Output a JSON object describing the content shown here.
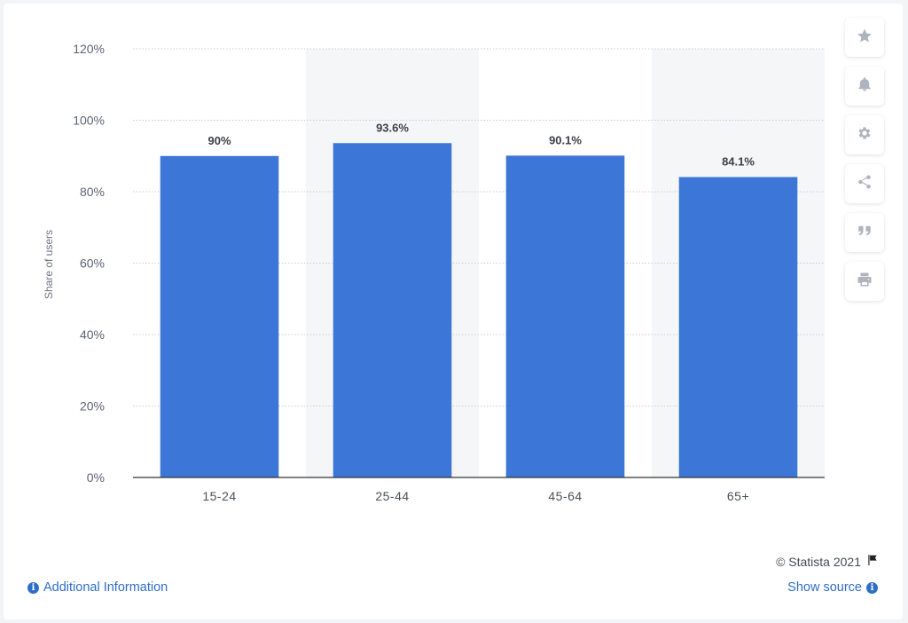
{
  "chart_data": {
    "type": "bar",
    "categories": [
      "15-24",
      "25-44",
      "45-64",
      "65+"
    ],
    "values": [
      90,
      93.6,
      90.1,
      84.1
    ],
    "data_labels": [
      "90%",
      "93.6%",
      "90.1%",
      "84.1%"
    ],
    "ylabel": "Share of users",
    "xlabel": "",
    "ylim": [
      0,
      120
    ],
    "yticks": [
      0,
      20,
      40,
      60,
      80,
      100,
      120
    ],
    "ytick_labels": [
      "0%",
      "20%",
      "40%",
      "60%",
      "80%",
      "100%",
      "120%"
    ],
    "grid": true,
    "colors": {
      "bar": "#3c77d8",
      "band": "#f5f6f8",
      "grid": "#c9cdd3",
      "axis": "#333333"
    }
  },
  "toolbar": {
    "icons": [
      "star-icon",
      "bell-icon",
      "gear-icon",
      "share-icon",
      "quote-icon",
      "print-icon"
    ]
  },
  "footer": {
    "copyright": "© Statista 2021",
    "additional_info": "Additional Information",
    "show_source": "Show source",
    "link_color": "#2f6ec7"
  }
}
